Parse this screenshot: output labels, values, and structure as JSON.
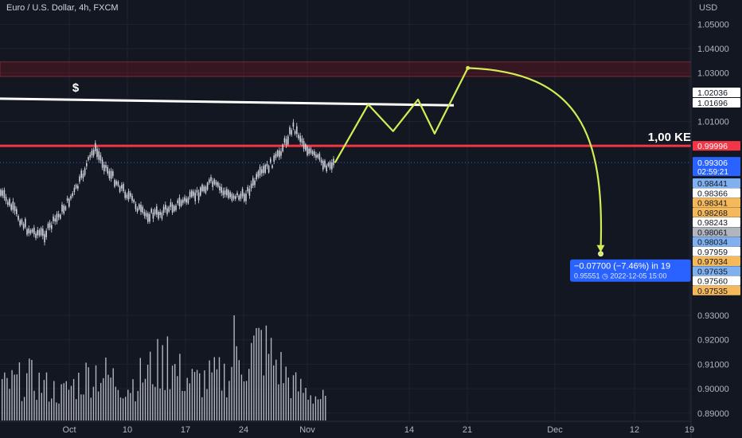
{
  "header": {
    "symbol_title": "Euro / U.S. Dollar, 4h, FXCM",
    "currency": "USD"
  },
  "colors": {
    "background": "#131722",
    "grid": "#1f2330",
    "candles": "#d1d4dc",
    "volume": "#b2b5be",
    "projection": "#d4ec54",
    "resistance_line": "#f23645",
    "zone_fill": "rgba(120,20,30,0.35)",
    "zone_border": "#7a2a33",
    "dollar_line": "#ffffff",
    "last_price_bg": "#2962ff"
  },
  "annotations": {
    "dollar_label": "$",
    "level_label": "1,00 KE",
    "measure_line1": "−0.07700 (−7.46%) in 19",
    "measure_line2": "0.95551 ◷ 2022-12-05  15:00"
  },
  "chart_data": {
    "type": "candlestick",
    "instrument": "Euro / U.S. Dollar",
    "timeframe": "4h",
    "source": "FXCM",
    "y_ticks": [
      "1.05000",
      "1.04000",
      "1.03000",
      "1.01000",
      "0.93000",
      "0.92000",
      "0.91000",
      "0.90000",
      "0.89000"
    ],
    "x_ticks": [
      "Oct",
      "10",
      "17",
      "24",
      "Nov",
      "14",
      "21",
      "Dec",
      "12",
      "19"
    ],
    "ylim": [
      0.886,
      1.058
    ],
    "price_series": {
      "name": "EURUSD",
      "x": [
        "2022-09-22",
        "2022-09-24",
        "2022-09-26",
        "2022-09-28",
        "2022-09-30",
        "2022-10-02",
        "2022-10-04",
        "2022-10-06",
        "2022-10-08",
        "2022-10-10",
        "2022-10-12",
        "2022-10-14",
        "2022-10-16",
        "2022-10-18",
        "2022-10-20",
        "2022-10-22",
        "2022-10-24",
        "2022-10-26",
        "2022-10-28",
        "2022-10-30",
        "2022-11-01",
        "2022-11-02"
      ],
      "y": [
        0.984,
        0.975,
        0.965,
        0.963,
        0.972,
        0.983,
        0.999,
        0.988,
        0.98,
        0.971,
        0.972,
        0.976,
        0.979,
        0.985,
        0.98,
        0.979,
        0.988,
        0.995,
        1.008,
        0.997,
        0.992,
        0.993
      ]
    },
    "volume_series": {
      "name": "Volume",
      "x": [
        "2022-09-22",
        "2022-09-26",
        "2022-09-30",
        "2022-10-04",
        "2022-10-08",
        "2022-10-12",
        "2022-10-16",
        "2022-10-20",
        "2022-10-24",
        "2022-10-28",
        "2022-11-01"
      ],
      "values": [
        0.4,
        0.55,
        0.35,
        0.65,
        0.45,
        0.75,
        0.5,
        0.6,
        1.0,
        0.45,
        0.25
      ]
    },
    "projection_path": {
      "x": [
        "2022-11-02",
        "2022-11-06",
        "2022-11-09",
        "2022-11-12",
        "2022-11-14",
        "2022-11-18",
        "2022-12-04"
      ],
      "y": [
        0.993,
        1.017,
        1.006,
        1.019,
        1.005,
        1.032,
        0.9555
      ]
    },
    "levels": [
      {
        "price": 0.99996,
        "label": "0.99996",
        "style": "red"
      },
      {
        "price": 1.02036,
        "label": "1.02036",
        "style": "white"
      },
      {
        "price": 1.01696,
        "label": "1.01696",
        "style": "white"
      }
    ],
    "zone": {
      "from": 1.0285,
      "to": 1.0345
    },
    "last_price": {
      "value": 0.99306,
      "label": "0.99306",
      "countdown": "02:59:21"
    },
    "right_scale_labels": [
      {
        "label": "0.98441",
        "style": "blue"
      },
      {
        "label": "0.98366",
        "style": "white"
      },
      {
        "label": "0.98341",
        "style": "orange"
      },
      {
        "label": "0.98268",
        "style": "orange"
      },
      {
        "label": "0.98243",
        "style": "white"
      },
      {
        "label": "0.98061",
        "style": "grey"
      },
      {
        "label": "0.98034",
        "style": "blue"
      },
      {
        "label": "0.97959",
        "style": "white"
      },
      {
        "label": "0.97934",
        "style": "orange"
      },
      {
        "label": "0.97635",
        "style": "blue"
      },
      {
        "label": "0.97560",
        "style": "white"
      },
      {
        "label": "0.97535",
        "style": "orange"
      }
    ],
    "grid": true,
    "legend": "none"
  }
}
